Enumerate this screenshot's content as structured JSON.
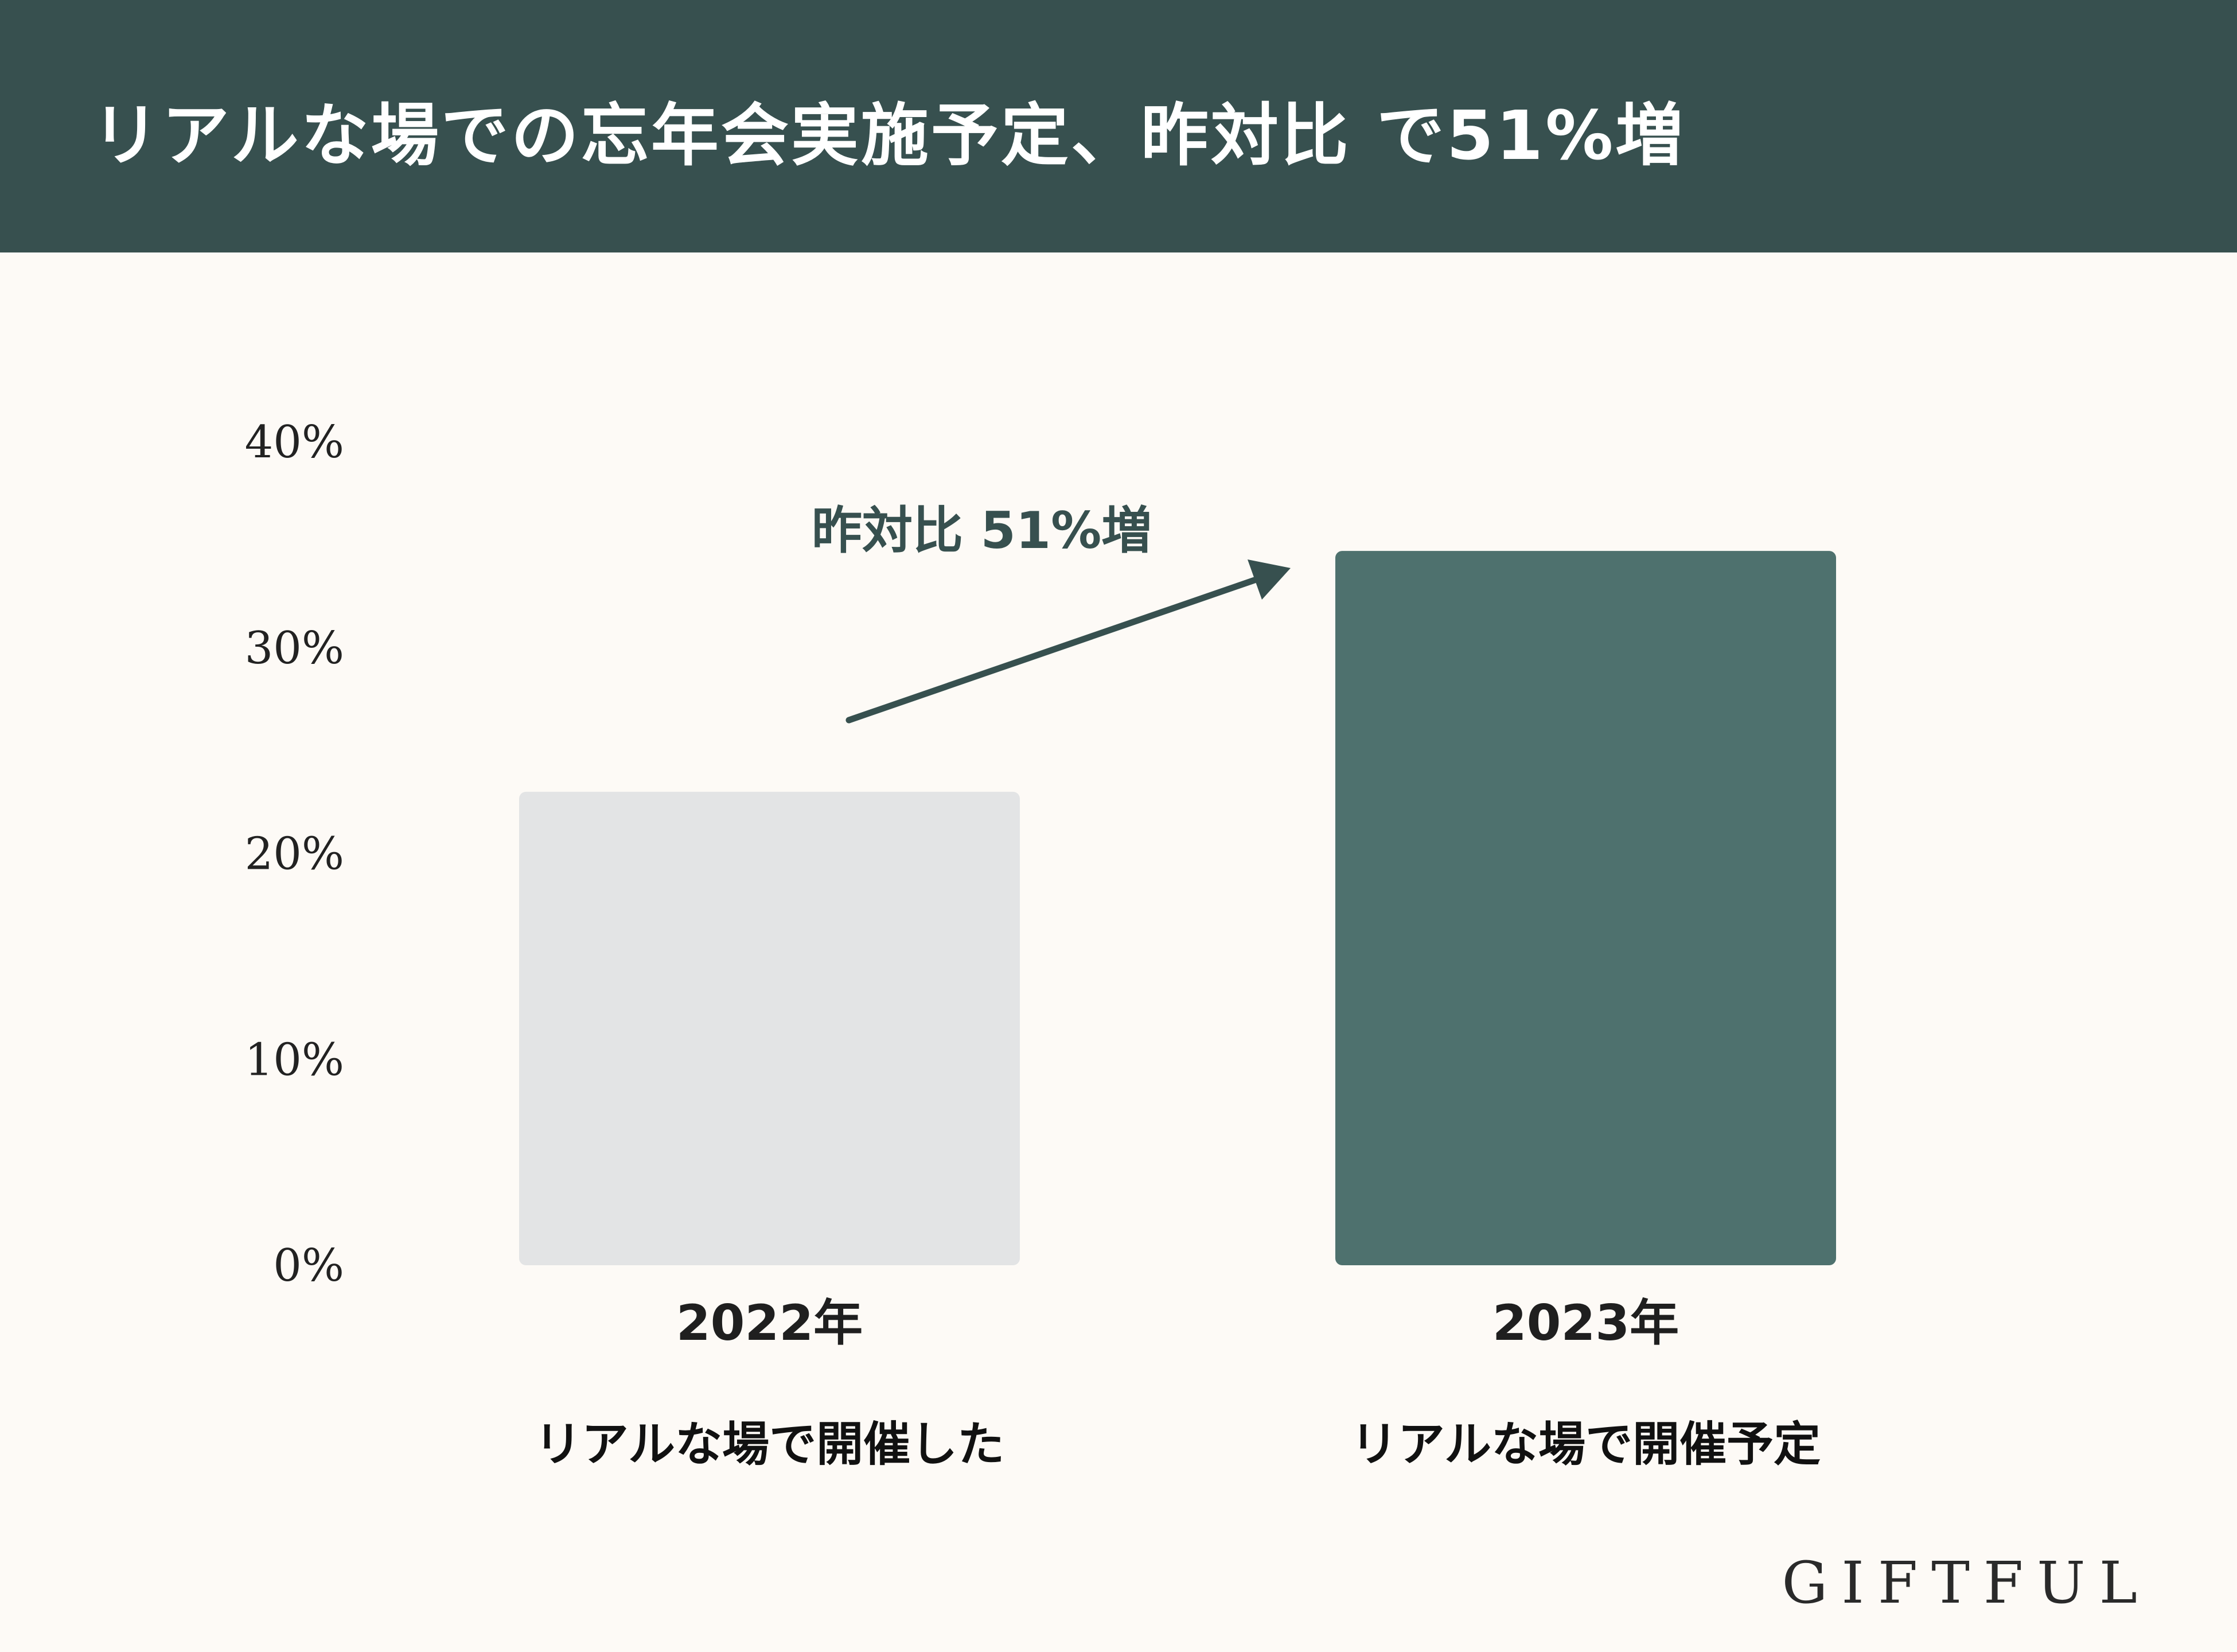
{
  "header": {
    "title": "リアルな場での忘年会実施予定、昨対比 で51%増"
  },
  "chart_data": {
    "type": "bar",
    "categories": [
      "2022年",
      "2023年"
    ],
    "category_sublabels": [
      "リアルな場で開催した",
      "リアルな場で開催予定"
    ],
    "values": [
      23,
      34.7
    ],
    "bar_colors": [
      "#e3e4e5",
      "#4e716e"
    ],
    "ylim": [
      0,
      40
    ],
    "yticks": [
      0,
      10,
      20,
      30,
      40
    ],
    "ytick_labels": [
      "0%",
      "10%",
      "20%",
      "30%",
      "40%"
    ],
    "annotation": "昨対比 51%増",
    "grid": false,
    "legend": "none"
  },
  "brand": {
    "logo": "GIFTFUL"
  },
  "colors": {
    "header_bg": "#37504f",
    "page_bg": "#fdfaf6",
    "accent": "#37504f"
  }
}
